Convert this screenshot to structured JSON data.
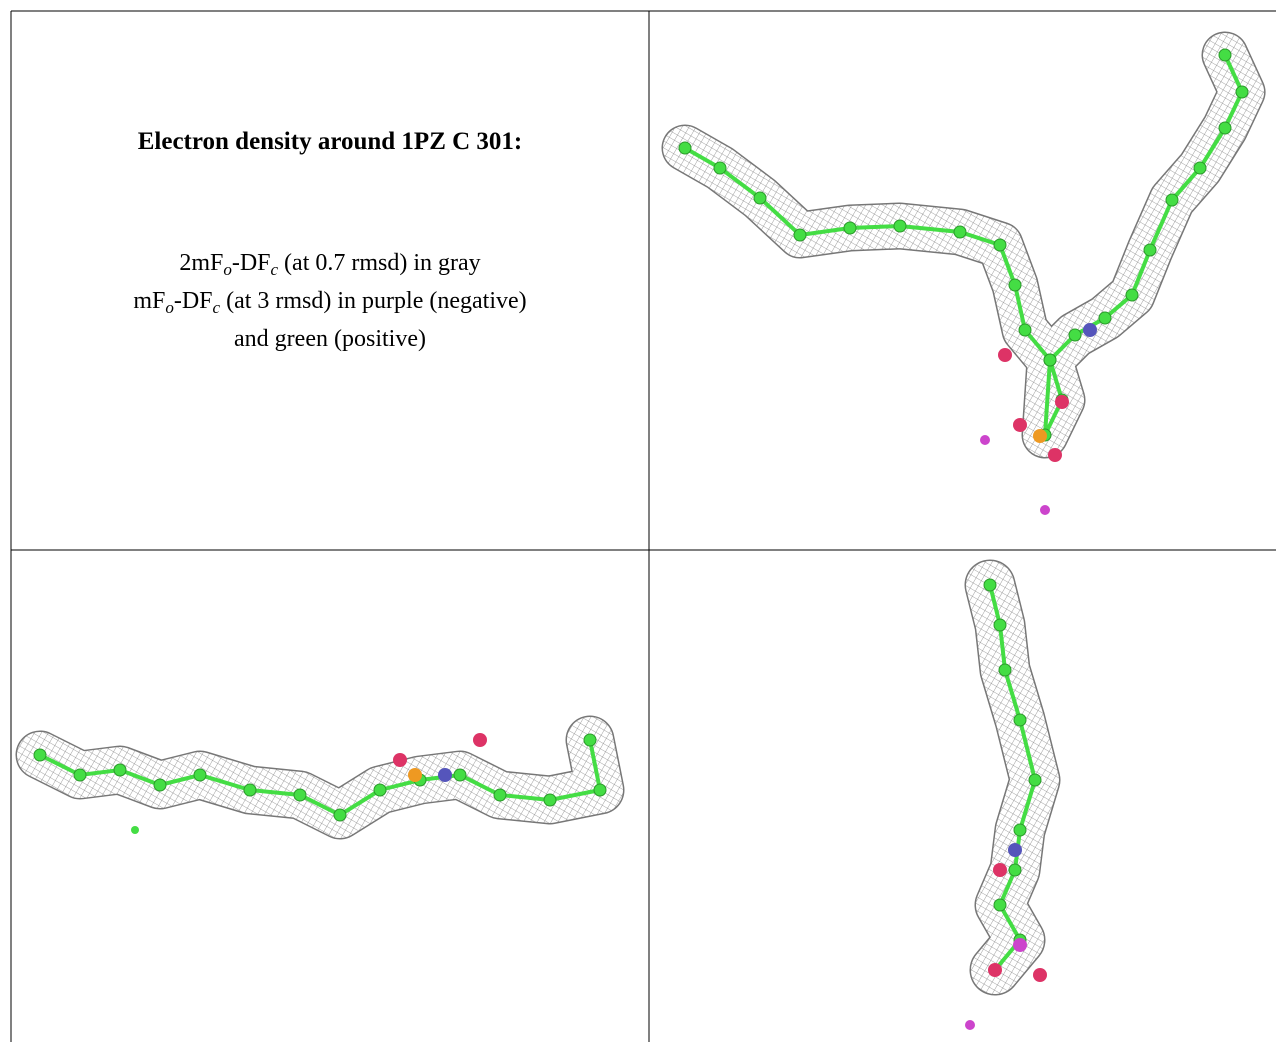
{
  "caption": {
    "title": "Electron density around 1PZ C 301:",
    "lines": [
      [
        "2mF",
        "o",
        "-DF",
        "c",
        " (at 0.7 rmsd) in gray"
      ],
      [
        "mF",
        "o",
        "-DF",
        "c",
        " (at 3 rmsd) in purple (negative)"
      ],
      [
        "and green (positive)"
      ]
    ]
  }
}
